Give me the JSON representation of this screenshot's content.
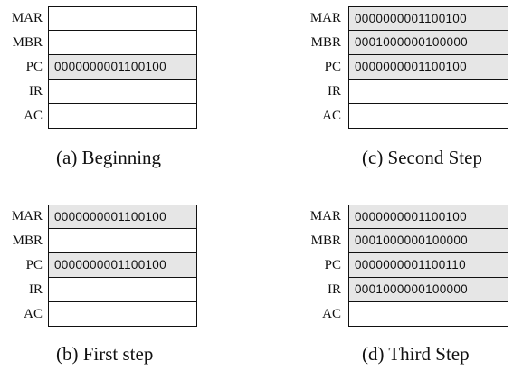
{
  "panels": {
    "a": {
      "caption": "(a) Beginning",
      "registers": [
        {
          "name": "MAR",
          "value": ""
        },
        {
          "name": "MBR",
          "value": ""
        },
        {
          "name": "PC",
          "value": "0000000001100100"
        },
        {
          "name": "IR",
          "value": ""
        },
        {
          "name": "AC",
          "value": ""
        }
      ]
    },
    "b": {
      "caption": "(b) First step",
      "registers": [
        {
          "name": "MAR",
          "value": "0000000001100100"
        },
        {
          "name": "MBR",
          "value": ""
        },
        {
          "name": "PC",
          "value": "0000000001100100"
        },
        {
          "name": "IR",
          "value": ""
        },
        {
          "name": "AC",
          "value": ""
        }
      ]
    },
    "c": {
      "caption": "(c) Second Step",
      "registers": [
        {
          "name": "MAR",
          "value": "0000000001100100"
        },
        {
          "name": "MBR",
          "value": "0001000000100000"
        },
        {
          "name": "PC",
          "value": "0000000001100100"
        },
        {
          "name": "IR",
          "value": ""
        },
        {
          "name": "AC",
          "value": ""
        }
      ]
    },
    "d": {
      "caption": "(d) Third Step",
      "registers": [
        {
          "name": "MAR",
          "value": "0000000001100100"
        },
        {
          "name": "MBR",
          "value": "0001000000100000"
        },
        {
          "name": "PC",
          "value": "0000000001100110"
        },
        {
          "name": "IR",
          "value": "0001000000100000"
        },
        {
          "name": "AC",
          "value": ""
        }
      ]
    }
  }
}
